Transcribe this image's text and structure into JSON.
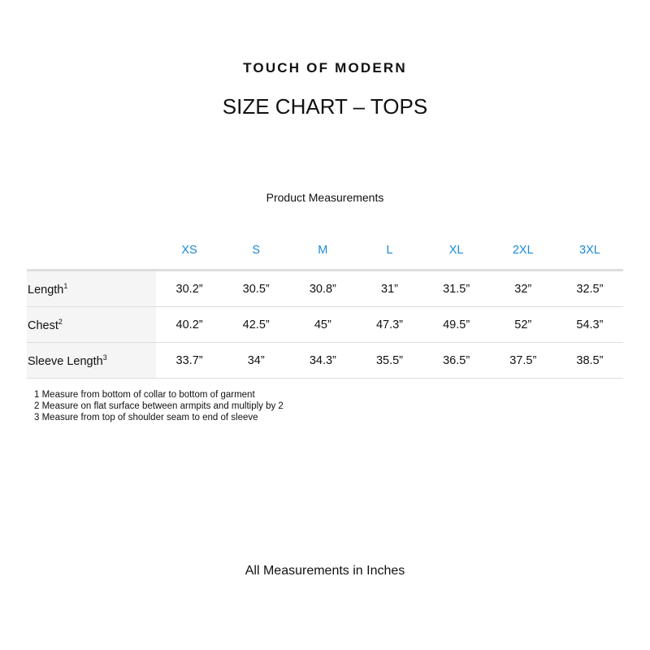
{
  "brand": "TOUCH OF MODERN",
  "title": "SIZE CHART – TOPS",
  "subtitle": "Product Measurements",
  "sizes": [
    "XS",
    "S",
    "M",
    "L",
    "XL",
    "2XL",
    "3XL"
  ],
  "rows": [
    {
      "label": "Length",
      "sup": "1",
      "values": [
        "30.2”",
        "30.5”",
        "30.8”",
        "31”",
        "31.5”",
        "32”",
        "32.5”"
      ]
    },
    {
      "label": "Chest",
      "sup": "2",
      "values": [
        "40.2”",
        "42.5”",
        "45”",
        "47.3”",
        "49.5”",
        "52”",
        "54.3”"
      ]
    },
    {
      "label": "Sleeve Length",
      "sup": "3",
      "values": [
        "33.7”",
        "34”",
        "34.3”",
        "35.5”",
        "36.5”",
        "37.5”",
        "38.5”"
      ]
    }
  ],
  "notes": [
    "1 Measure from bottom of collar to bottom of garment",
    "2 Measure on flat surface between armpits and multiply by 2",
    "3 Measure from top of shoulder seam to end of sleeve"
  ],
  "footer": "All Measurements in Inches",
  "colors": {
    "size_header": "#1a8ad8",
    "label_bg": "#f5f5f5"
  }
}
